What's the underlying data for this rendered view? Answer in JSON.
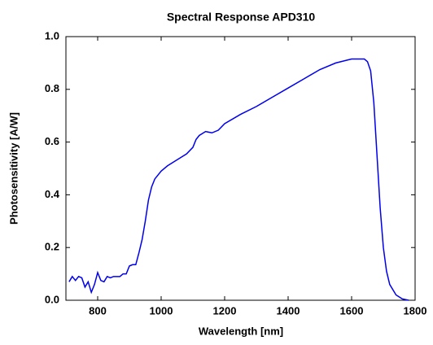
{
  "chart_data": {
    "type": "line",
    "title": "Spectral Response APD310",
    "x_label": "Wavelength [nm]",
    "y_label": "Photosensitivity [A/W]",
    "x": [
      710,
      720,
      730,
      740,
      750,
      760,
      770,
      780,
      790,
      800,
      810,
      820,
      830,
      840,
      850,
      860,
      870,
      880,
      890,
      900,
      910,
      920,
      930,
      940,
      950,
      960,
      970,
      980,
      1000,
      1020,
      1040,
      1060,
      1080,
      1100,
      1110,
      1120,
      1140,
      1160,
      1180,
      1200,
      1250,
      1300,
      1350,
      1400,
      1450,
      1500,
      1550,
      1600,
      1640,
      1650,
      1660,
      1670,
      1680,
      1690,
      1700,
      1710,
      1720,
      1740,
      1760,
      1780
    ],
    "series": [
      {
        "name": "APD310",
        "color": "#0000ee",
        "values": [
          0.07,
          0.09,
          0.075,
          0.09,
          0.085,
          0.05,
          0.07,
          0.03,
          0.06,
          0.105,
          0.075,
          0.07,
          0.09,
          0.085,
          0.09,
          0.09,
          0.09,
          0.1,
          0.1,
          0.13,
          0.135,
          0.135,
          0.18,
          0.23,
          0.3,
          0.38,
          0.43,
          0.46,
          0.49,
          0.51,
          0.525,
          0.54,
          0.555,
          0.58,
          0.61,
          0.625,
          0.64,
          0.635,
          0.645,
          0.67,
          0.705,
          0.735,
          0.77,
          0.805,
          0.84,
          0.875,
          0.9,
          0.915,
          0.915,
          0.905,
          0.87,
          0.75,
          0.55,
          0.35,
          0.2,
          0.11,
          0.06,
          0.02,
          0.005,
          0.0
        ]
      }
    ],
    "xlim": [
      700,
      1800
    ],
    "xticks": [
      800,
      1000,
      1200,
      1400,
      1600,
      1800
    ],
    "ylim": [
      0,
      1
    ],
    "yticks": [
      {
        "value": 0,
        "label": "0.0"
      },
      0.2,
      0.4,
      0.6,
      0.8,
      {
        "value": 1,
        "label": "1.0"
      }
    ]
  }
}
